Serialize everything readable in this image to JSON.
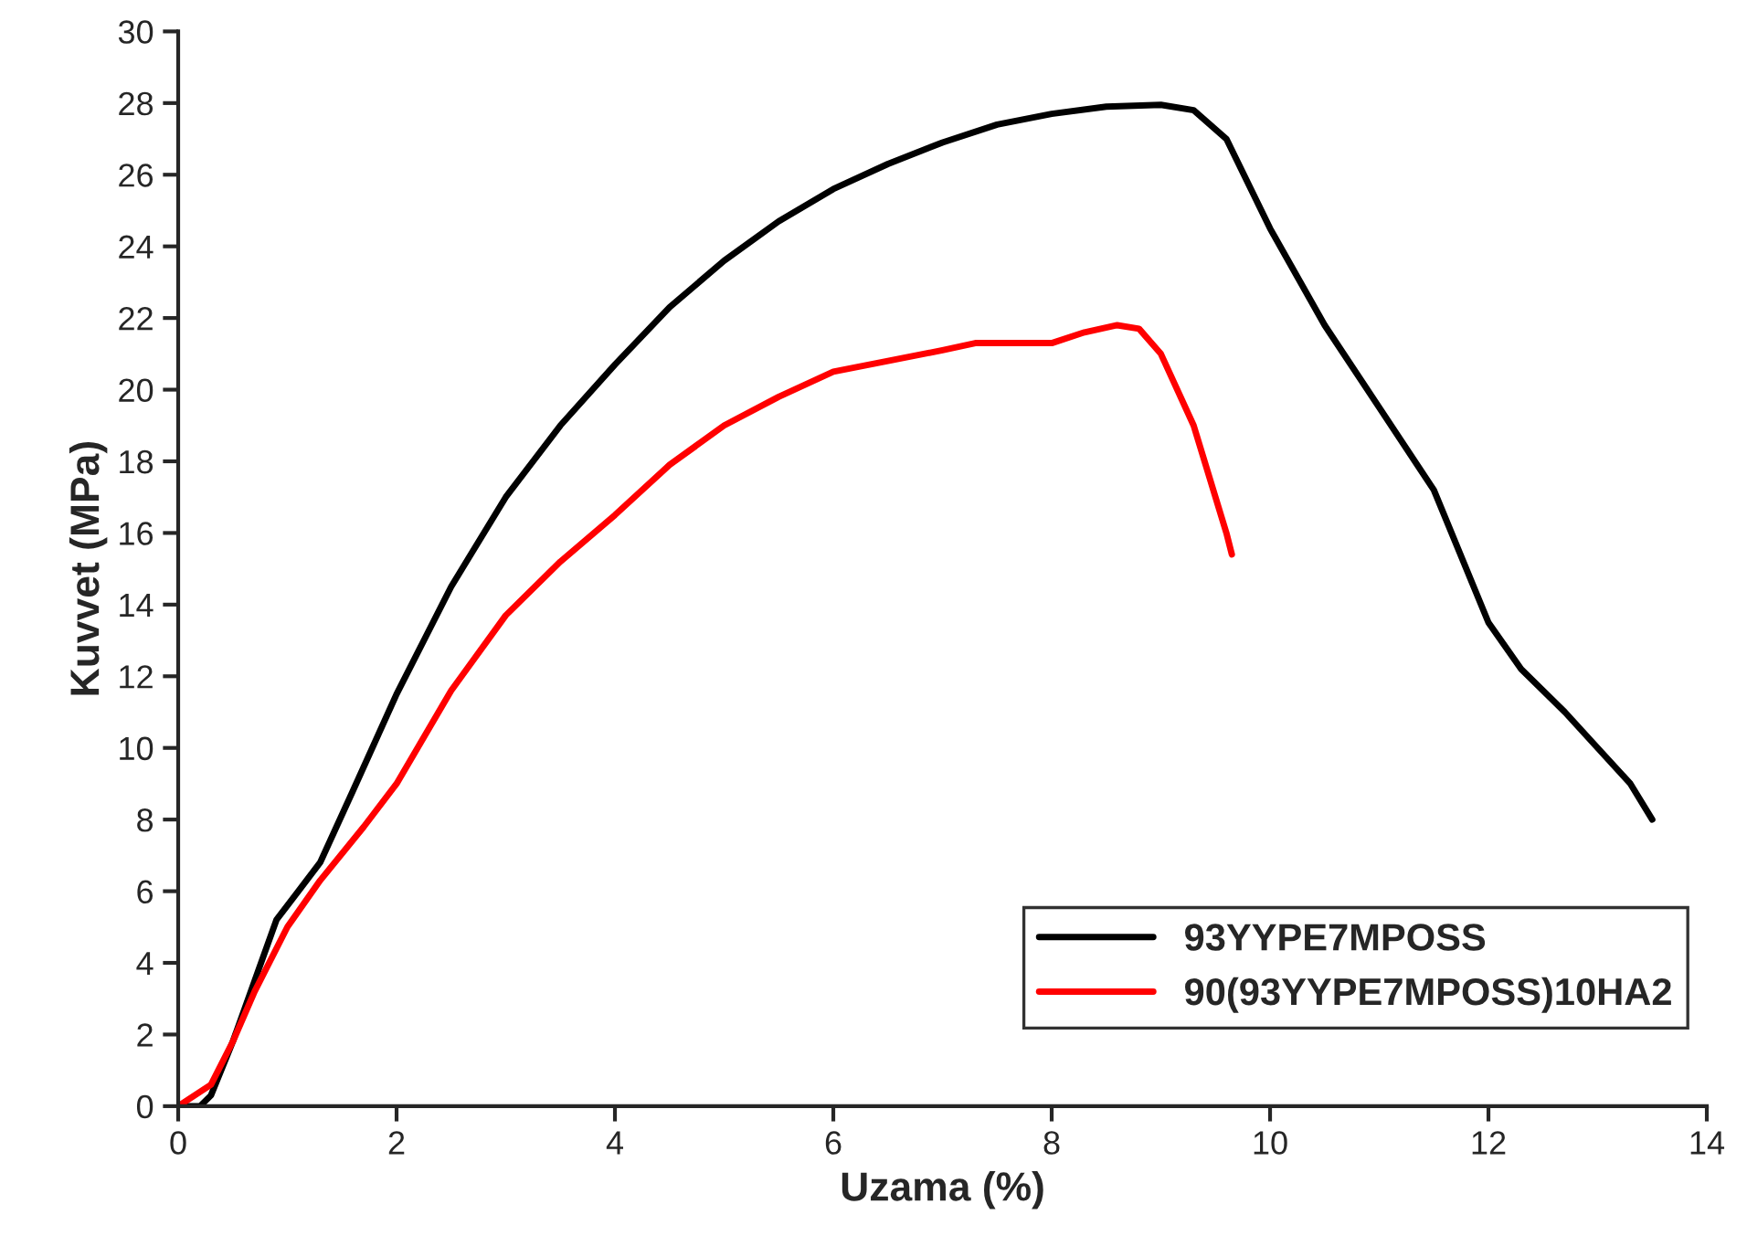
{
  "chart_data": {
    "type": "line",
    "xlabel": "Uzama (%)",
    "ylabel": "Kuvvet (MPa)",
    "xlim": [
      0,
      14
    ],
    "ylim": [
      0,
      30
    ],
    "xticks": [
      0,
      2,
      4,
      6,
      8,
      10,
      12,
      14
    ],
    "yticks": [
      0,
      2,
      4,
      6,
      8,
      10,
      12,
      14,
      16,
      18,
      20,
      22,
      24,
      26,
      28,
      30
    ],
    "grid": false,
    "legend": "bottom right",
    "marker": "none",
    "line_style": "solid",
    "series": [
      {
        "name": "93YYPE7MPOSS",
        "color": "#000000",
        "x": [
          0,
          0.2,
          0.3,
          0.5,
          0.7,
          0.9,
          1.1,
          1.3,
          1.6,
          2,
          2.5,
          3,
          3.5,
          4,
          4.5,
          5,
          5.5,
          6,
          6.5,
          7,
          7.5,
          8,
          8.5,
          9,
          9.3,
          9.6,
          10,
          10.5,
          11,
          11.5,
          12,
          12.3,
          12.7,
          13,
          13.3,
          13.5
        ],
        "values": [
          0,
          0,
          0.3,
          1.8,
          3.5,
          5.2,
          6,
          6.8,
          8.8,
          11.5,
          14.5,
          17,
          19,
          20.7,
          22.3,
          23.6,
          24.7,
          25.6,
          26.3,
          26.9,
          27.4,
          27.7,
          27.9,
          27.95,
          27.8,
          27,
          24.5,
          21.8,
          19.5,
          17.2,
          13.5,
          12.2,
          11,
          10,
          9,
          8
        ]
      },
      {
        "name": "90(93YYPE7MPOSS)10HA2",
        "color": "#ff0000",
        "x": [
          0,
          0.3,
          0.5,
          0.7,
          1,
          1.3,
          1.7,
          2,
          2.5,
          3,
          3.5,
          4,
          4.5,
          5,
          5.5,
          6,
          6.5,
          7,
          7.3,
          7.6,
          8,
          8.3,
          8.6,
          8.8,
          9,
          9.3,
          9.6,
          9.65
        ],
        "values": [
          0,
          0.6,
          1.8,
          3.2,
          5,
          6.3,
          7.8,
          9,
          11.6,
          13.7,
          15.2,
          16.5,
          17.9,
          19,
          19.8,
          20.5,
          20.8,
          21.1,
          21.3,
          21.3,
          21.3,
          21.6,
          21.8,
          21.7,
          21,
          19,
          16,
          15.4
        ]
      }
    ]
  }
}
